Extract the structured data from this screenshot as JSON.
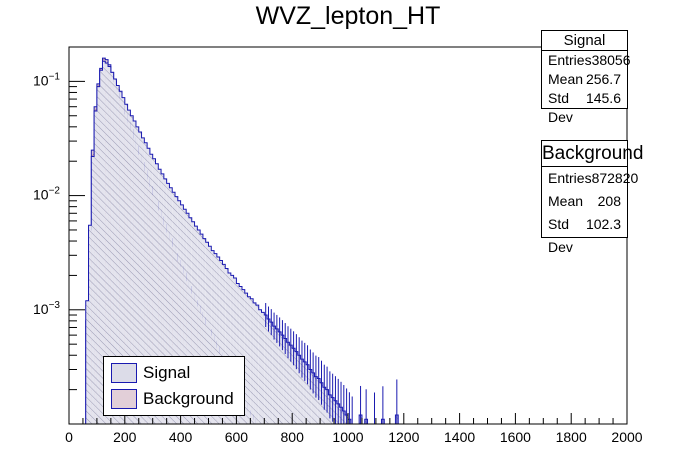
{
  "chart_data": {
    "type": "histogram",
    "title": "WVZ_lepton_HT",
    "xlabel": "",
    "ylabel": "",
    "xlim": [
      0,
      2000
    ],
    "ylim": [
      0.0001,
      0.2
    ],
    "yscale": "log",
    "x_ticks": [
      "0",
      "200",
      "400",
      "600",
      "800",
      "1000",
      "1200",
      "1400",
      "1600",
      "1800",
      "2000"
    ],
    "y_ticks": [
      {
        "value": 0.1,
        "base": "10",
        "exp": "−1"
      },
      {
        "value": 0.01,
        "base": "10",
        "exp": "−2"
      },
      {
        "value": 0.001,
        "base": "10",
        "exp": "−3"
      }
    ],
    "bin_width": 10,
    "series": [
      {
        "name": "Signal",
        "line_color": "#1a1ab0",
        "fill_color": "#dcdce8",
        "x_start": 60,
        "values": [
          0.0012,
          0.0055,
          0.022,
          0.055,
          0.09,
          0.125,
          0.15,
          0.145,
          0.135,
          0.12,
          0.105,
          0.092,
          0.082,
          0.072,
          0.063,
          0.056,
          0.05,
          0.045,
          0.04,
          0.036,
          0.032,
          0.029,
          0.026,
          0.023,
          0.021,
          0.019,
          0.017,
          0.0155,
          0.014,
          0.0128,
          0.0117,
          0.0107,
          0.0098,
          0.009,
          0.0083,
          0.0076,
          0.007,
          0.0064,
          0.0059,
          0.0054,
          0.005,
          0.0046,
          0.0042,
          0.0039,
          0.0036,
          0.0033,
          0.0031,
          0.0029,
          0.0027,
          0.0025,
          0.0023,
          0.0021,
          0.002,
          0.0019,
          0.0017,
          0.0016,
          0.0015,
          0.0014,
          0.0013,
          0.00125,
          0.00115,
          0.0011,
          0.001,
          0.00095,
          0.0009,
          0.00083,
          0.00078,
          0.00072,
          0.00068,
          0.00064,
          0.0006,
          0.00056,
          0.00052,
          0.00049,
          0.00046,
          0.00043,
          0.0004,
          0.00037,
          0.00035,
          0.00033,
          0.0003,
          0.00028,
          0.00026,
          0.00025,
          0.00023,
          0.00021,
          0.0002,
          0.00018,
          0.00017,
          0.00016,
          0.00015,
          0.00014,
          0.00013,
          0.00012,
          0.00011,
          0.0001,
          0,
          0,
          0.00012,
          0,
          0.00011,
          0,
          0,
          0.0001,
          0,
          0,
          0.00011,
          0,
          0,
          0,
          0,
          0.00012,
          0,
          0,
          0,
          0,
          0,
          0,
          0,
          0,
          0,
          0,
          0
        ]
      },
      {
        "name": "Background",
        "line_color": "#1a1ab0",
        "fill_color": "#e2cfd8",
        "x_start": 60,
        "values": [
          0.0008,
          0.005,
          0.025,
          0.06,
          0.095,
          0.13,
          0.16,
          0.155,
          0.14,
          0.12,
          0.1,
          0.085,
          0.072,
          0.061,
          0.052,
          0.044,
          0.038,
          0.032,
          0.027,
          0.023,
          0.0195,
          0.0165,
          0.014,
          0.012,
          0.0102,
          0.0088,
          0.0075,
          0.0065,
          0.0056,
          0.0048,
          0.0042,
          0.0036,
          0.0031,
          0.0027,
          0.0024,
          0.0021,
          0.0018,
          0.0016,
          0.0014,
          0.0012,
          0.00108,
          0.00095,
          0.00085,
          0.00075,
          0.00067,
          0.0006,
          0.00053,
          0.00047,
          0.00042,
          0.00038,
          0.00034,
          0.0003,
          0.00027,
          0.00024,
          0.00021,
          0.00019,
          0.00017,
          0.00015,
          0.00013,
          0.00012,
          0.00011,
          0.0001,
          0,
          0,
          0,
          0,
          0,
          0,
          0,
          0,
          0
        ]
      }
    ]
  },
  "stats": {
    "signal": {
      "title": "Signal",
      "entries_label": "Entries",
      "entries": "38056",
      "mean_label": "Mean",
      "mean": "256.7",
      "std_label": "Std Dev",
      "std": "145.6"
    },
    "background": {
      "title": "Background",
      "entries_label": "Entries",
      "entries": "872820",
      "mean_label": "Mean",
      "mean": "208",
      "std_label": "Std Dev",
      "std": "102.3"
    }
  },
  "legend": {
    "signal_label": "Signal",
    "background_label": "Background"
  }
}
